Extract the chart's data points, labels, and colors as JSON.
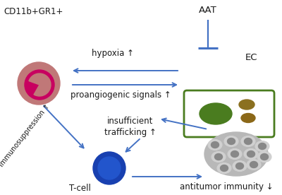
{
  "bg_color": "#ffffff",
  "arrow_color": "#4472c4",
  "text_color": "#1a1a1a",
  "cd11b_label": "CD11b+GR1+",
  "tcell_label": "T-cell",
  "aat_label": "AAT",
  "ec_label": "EC",
  "hypoxia_label": "hypoxia ↑",
  "proangio_label": "proangiogenic signals ↑",
  "immunosup_label": "immunosuppression ↑",
  "trafficking_label": "insufficient\ntrafficking ↑",
  "antitumor_label": "antitumor immunity ↓",
  "green_box_color": "#4a7c1f",
  "cell_pink_outer": "#c07878",
  "cell_pink_inner": "#c80060",
  "cell_blue_dark": "#1840b0",
  "cell_blue_mid": "#2255cc",
  "tumor_bg": "#b8b8b8",
  "tumor_cell_light": "#d0d0d0",
  "tumor_cell_dark": "#707070"
}
